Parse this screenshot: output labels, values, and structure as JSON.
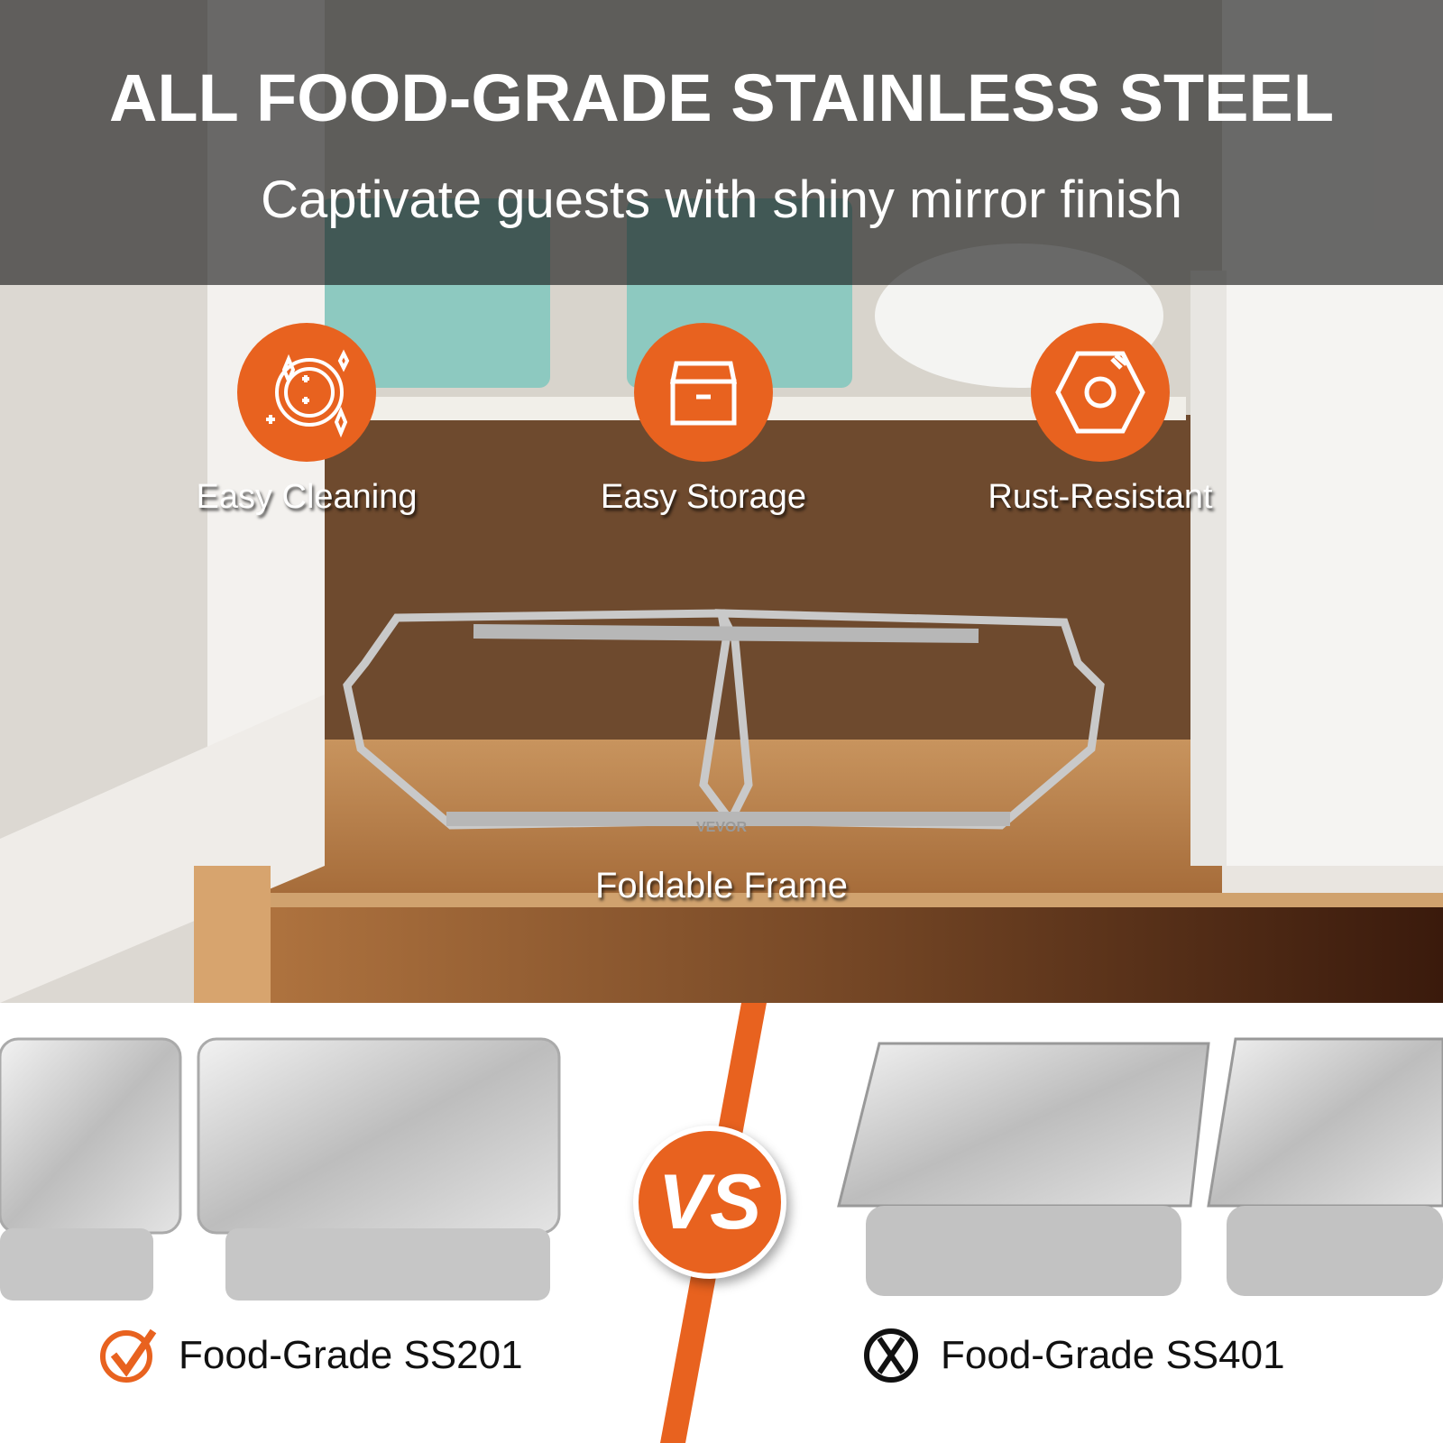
{
  "header": {
    "title": "ALL FOOD-GRADE STAINLESS STEEL",
    "subtitle": "Captivate guests with shiny mirror finish"
  },
  "features": [
    {
      "label": "Easy Cleaning",
      "icon": "sparkling-plate-icon"
    },
    {
      "label": "Easy Storage",
      "icon": "storage-box-icon"
    },
    {
      "label": "Rust-Resistant",
      "icon": "hex-nut-icon"
    }
  ],
  "product": {
    "label": "Foldable Frame",
    "brand_mark": "VEVOR"
  },
  "comparison": {
    "vs_label": "VS",
    "good": {
      "label": "Food-Grade SS201",
      "icon": "check-circle-icon"
    },
    "bad": {
      "label": "Food-Grade SS401",
      "icon": "x-circle-icon"
    }
  },
  "colors": {
    "accent": "#e8621f",
    "band": "#2a2a2a",
    "cabinet_interior": "#6e4a2e"
  }
}
